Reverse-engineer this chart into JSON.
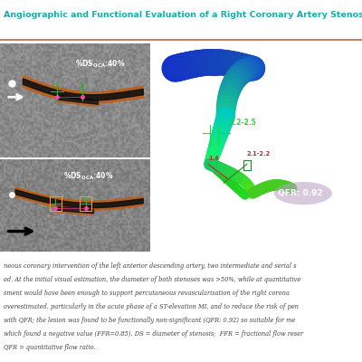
{
  "title": "Angiographic and Functional Evaluation of a Right Coronary Artery Stenosis",
  "title_color": "#1aacac",
  "title_fontsize": 6.8,
  "separator_color": "#c8604a",
  "bg_color": "#ffffff",
  "image_panel_bg": "#1a1a1a",
  "right_panel_bg": "#303030",
  "qfr_label": "QFR: 0.92",
  "measure_label1": "2.2-2.5",
  "measure_label2": "2.1-2.2",
  "measure_label3": "1.4",
  "caption_lines": [
    "neous coronary intervention of the left anterior descending artery, two intermediate and serial s",
    "ed. At the initial visual estimation, the diameter of both stenoses was >50%, while at quantitative",
    "sment would have been enough to support percutaneous revascularisation of the right corona",
    "overestimated, particularly in the acute phase of a ST-elevation MI, and to reduce the risk of pen",
    "with QFR; the lesion was found to be functionally non-significant (QFR: 0.92) so suitable for me",
    "which found a negative value (FFR=0.85). DS = diameter of stenosis;  FFR = fractional flow reser",
    "QFR = quantitative flow ratio."
  ],
  "caption_color": "#444444",
  "caption_fontsize": 4.8
}
